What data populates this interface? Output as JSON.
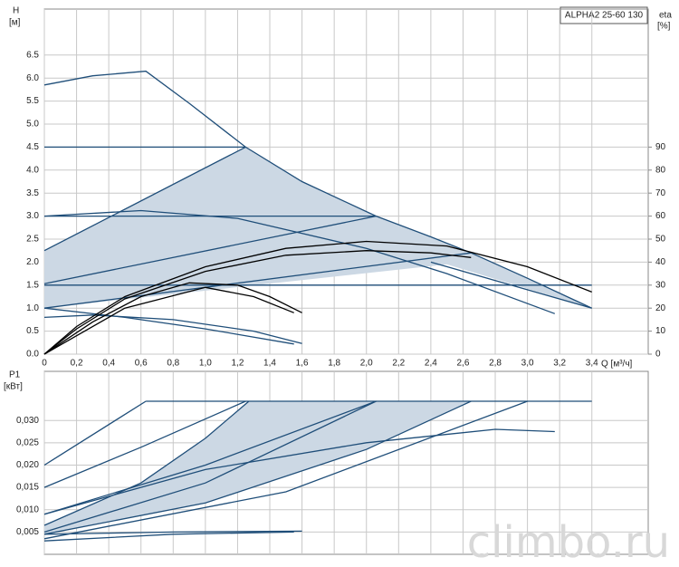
{
  "watermark": "climbo.ru",
  "chart_data": [
    {
      "type": "line",
      "annotation": "ALPHA2 25-60 130",
      "y_label": "H",
      "y_unit": "[м]",
      "y2_label": "eta",
      "y2_unit": "[%]",
      "x_label": "Q [м³/ч]",
      "xlim": [
        0,
        3.75
      ],
      "ylim": [
        0,
        7.5
      ],
      "y2lim": [
        0,
        150
      ],
      "grid": true,
      "xticks": [
        0,
        {
          "value": 0.2,
          "label": "0,2"
        },
        {
          "value": 0.4,
          "label": "0,4"
        },
        {
          "value": 0.6,
          "label": "0,6"
        },
        {
          "value": 0.8,
          "label": "0,8"
        },
        {
          "value": 1.0,
          "label": "1,0"
        },
        {
          "value": 1.2,
          "label": "1,2"
        },
        {
          "value": 1.4,
          "label": "1,4"
        },
        {
          "value": 1.6,
          "label": "1,6"
        },
        {
          "value": 1.8,
          "label": "1,8"
        },
        {
          "value": 2.0,
          "label": "2,0"
        },
        {
          "value": 2.2,
          "label": "2,2"
        },
        {
          "value": 2.4,
          "label": "2,4"
        },
        {
          "value": 2.6,
          "label": "2,6"
        },
        {
          "value": 2.8,
          "label": "2,8"
        },
        {
          "value": 3.0,
          "label": "3,0"
        },
        {
          "value": 3.2,
          "label": "3,2"
        },
        {
          "value": 3.4,
          "label": "3,4"
        }
      ],
      "yticks": [
        {
          "value": 0,
          "label": "0.0"
        },
        0.5,
        {
          "value": 1,
          "label": "1.0"
        },
        1.5,
        {
          "value": 2,
          "label": "2.0"
        },
        2.5,
        {
          "value": 3,
          "label": "3.0"
        },
        3.5,
        {
          "value": 4,
          "label": "4.0"
        },
        4.5,
        {
          "value": 5,
          "label": "5.0"
        },
        5.5,
        {
          "value": 6,
          "label": "6.0"
        },
        6.5
      ],
      "y2ticks": [
        0,
        10,
        20,
        30,
        40,
        50,
        60,
        70,
        80,
        90
      ],
      "series": [
        {
          "fill": "#ccd8e4",
          "x": [
            0,
            1.25,
            1.6,
            2.06,
            2.4,
            2.65,
            3.0,
            3.4,
            2.5,
            0
          ],
          "values": [
            2.25,
            4.5,
            3.75,
            3.0,
            2.55,
            2.2,
            1.65,
            1.0,
            1.95,
            1.0
          ]
        },
        {
          "color": "#1f4e79",
          "x": [
            0,
            0.3,
            0.63,
            0.9,
            1.25,
            1.6,
            2.06,
            2.4,
            2.65,
            3.0,
            3.4
          ],
          "values": [
            5.85,
            6.05,
            6.15,
            5.45,
            4.5,
            3.75,
            3.0,
            2.55,
            2.2,
            1.65,
            1.0
          ]
        },
        {
          "color": "#1f4e79",
          "x": [
            0,
            1.25
          ],
          "values": [
            4.5,
            4.5
          ]
        },
        {
          "color": "#1f4e79",
          "x": [
            0,
            2.06
          ],
          "values": [
            3.0,
            3.0
          ]
        },
        {
          "color": "#1f4e79",
          "x": [
            0,
            3.4
          ],
          "values": [
            1.5,
            1.5
          ]
        },
        {
          "color": "#1f4e79",
          "x": [
            0,
            1.25
          ],
          "values": [
            2.25,
            4.5
          ]
        },
        {
          "color": "#1f4e79",
          "x": [
            0,
            2.06
          ],
          "values": [
            1.53,
            3.0
          ]
        },
        {
          "color": "#1f4e79",
          "x": [
            0,
            2.65
          ],
          "values": [
            1.0,
            2.2
          ]
        },
        {
          "color": "#1f4e79",
          "x": [
            2.4,
            3.4
          ],
          "values": [
            2.0,
            1.0
          ]
        },
        {
          "color": "#1f4e79",
          "x": [
            0,
            0.6,
            1.2,
            2.0,
            2.5,
            3.17
          ],
          "values": [
            3.0,
            3.12,
            2.95,
            2.3,
            1.75,
            0.88
          ]
        },
        {
          "color": "#1f4e79",
          "x": [
            0,
            0.3,
            0.8,
            1.3,
            1.6
          ],
          "values": [
            0.8,
            0.85,
            0.75,
            0.5,
            0.23
          ]
        },
        {
          "color": "#1f4e79",
          "x": [
            0,
            0.5,
            1.0,
            1.55
          ],
          "values": [
            1.0,
            0.8,
            0.55,
            0.22
          ]
        },
        {
          "color": "#000000",
          "axis": "y2",
          "x": [
            0,
            0.2,
            0.5,
            1.0,
            1.5,
            2.0,
            2.5,
            3.0,
            3.4
          ],
          "values": [
            0,
            12,
            25,
            38,
            46,
            49,
            47,
            38,
            27
          ]
        },
        {
          "color": "#000000",
          "axis": "y2",
          "x": [
            0,
            0.2,
            0.5,
            1.0,
            1.5,
            2.0,
            2.4,
            2.65
          ],
          "values": [
            0,
            11,
            24,
            36,
            43,
            45,
            44,
            42
          ]
        },
        {
          "color": "#000000",
          "axis": "y2",
          "x": [
            0,
            0.3,
            0.6,
            0.9,
            1.2,
            1.4,
            1.6
          ],
          "values": [
            0,
            14,
            25,
            31,
            30,
            25,
            18
          ]
        },
        {
          "color": "#000000",
          "axis": "y2",
          "x": [
            0,
            0.5,
            1.0,
            1.3,
            1.55
          ],
          "values": [
            0,
            20,
            29,
            25,
            18
          ]
        }
      ]
    },
    {
      "type": "line",
      "y_label": "P1",
      "y_unit": "[кВт]",
      "xlim": [
        0,
        3.75
      ],
      "ylim": [
        0,
        0.041
      ],
      "grid": true,
      "yticks": [
        {
          "value": 0.005,
          "label": "0,005"
        },
        {
          "value": 0.01,
          "label": "0,010"
        },
        {
          "value": 0.015,
          "label": "0,015"
        },
        {
          "value": 0.02,
          "label": "0,020"
        },
        {
          "value": 0.025,
          "label": "0,025"
        },
        {
          "value": 0.03,
          "label": "0,030"
        }
      ],
      "series": [
        {
          "fill": "#ccd8e4",
          "x": [
            0,
            0.6,
            1.0,
            1.27,
            2.65,
            2.0,
            1.0,
            0
          ],
          "values": [
            0.0065,
            0.016,
            0.026,
            0.0343,
            0.0343,
            0.0235,
            0.0115,
            0.0045
          ]
        },
        {
          "color": "#1f4e79",
          "x": [
            0.63,
            3.4
          ],
          "values": [
            0.0343,
            0.0343
          ]
        },
        {
          "color": "#1f4e79",
          "x": [
            0,
            0.63
          ],
          "values": [
            0.02,
            0.0343
          ]
        },
        {
          "color": "#1f4e79",
          "x": [
            0,
            0.6,
            1.25
          ],
          "values": [
            0.015,
            0.024,
            0.0343
          ]
        },
        {
          "color": "#1f4e79",
          "x": [
            0,
            0.6,
            1.0,
            1.27
          ],
          "values": [
            0.0065,
            0.016,
            0.026,
            0.0343
          ]
        },
        {
          "color": "#1f4e79",
          "x": [
            0,
            1.0,
            2.06
          ],
          "values": [
            0.009,
            0.02,
            0.0343
          ]
        },
        {
          "color": "#1f4e79",
          "x": [
            0,
            1.0,
            2.06
          ],
          "values": [
            0.005,
            0.016,
            0.0343
          ]
        },
        {
          "color": "#1f4e79",
          "x": [
            0,
            1.0,
            2.0,
            2.65
          ],
          "values": [
            0.0045,
            0.0115,
            0.0235,
            0.0343
          ]
        },
        {
          "color": "#1f4e79",
          "x": [
            0,
            1.5,
            3.0
          ],
          "values": [
            0.0035,
            0.014,
            0.0343
          ]
        },
        {
          "color": "#1f4e79",
          "x": [
            0,
            1.0,
            2.0,
            2.8,
            3.17
          ],
          "values": [
            0.009,
            0.019,
            0.025,
            0.028,
            0.0275
          ]
        },
        {
          "color": "#1f4e79",
          "x": [
            0,
            0.8,
            1.6
          ],
          "values": [
            0.0045,
            0.005,
            0.0052
          ]
        },
        {
          "color": "#1f4e79",
          "x": [
            0,
            0.8,
            1.55
          ],
          "values": [
            0.003,
            0.0045,
            0.005
          ]
        }
      ]
    }
  ]
}
